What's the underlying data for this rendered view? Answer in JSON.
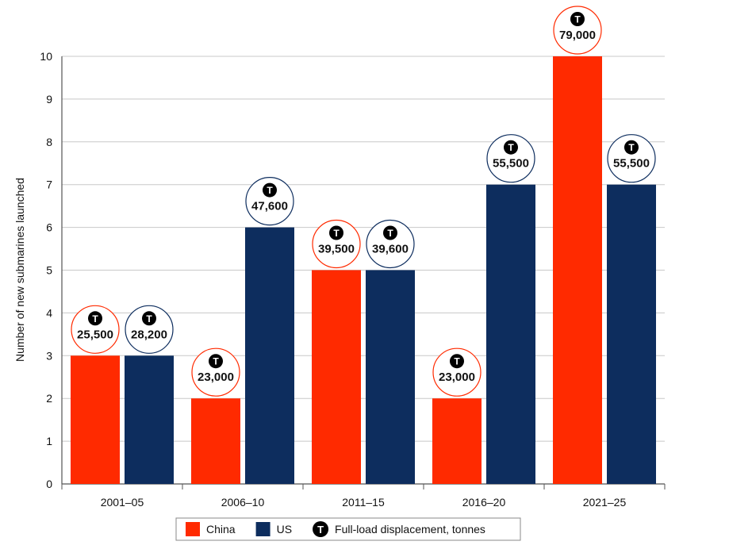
{
  "chart_data": {
    "type": "bar",
    "categories": [
      "2001–05",
      "2006–10",
      "2011–15",
      "2016–20",
      "2021–25"
    ],
    "series": [
      {
        "name": "China",
        "color": "#ff2a00",
        "values": [
          3,
          2,
          5,
          2,
          10
        ],
        "displacement": [
          "25,500",
          "23,000",
          "39,500",
          "23,000",
          "79,000"
        ]
      },
      {
        "name": "US",
        "color": "#0d2d5e",
        "values": [
          3,
          6,
          5,
          7,
          7
        ],
        "displacement": [
          "28,200",
          "47,600",
          "39,600",
          "55,500",
          "55,500"
        ]
      }
    ],
    "ylabel": "Number of new submarines launched",
    "xlabel": "",
    "ylim": [
      0,
      10
    ],
    "yticks": [
      0,
      1,
      2,
      3,
      4,
      5,
      6,
      7,
      8,
      9,
      10
    ],
    "grid": true,
    "badge_symbol": "T",
    "legend": {
      "placement": "bottom-center",
      "items": [
        {
          "label": "China",
          "kind": "swatch",
          "series": 0
        },
        {
          "label": "US",
          "kind": "swatch",
          "series": 1
        },
        {
          "label": "Full-load displacement, tonnes",
          "kind": "badge-icon"
        }
      ]
    }
  }
}
